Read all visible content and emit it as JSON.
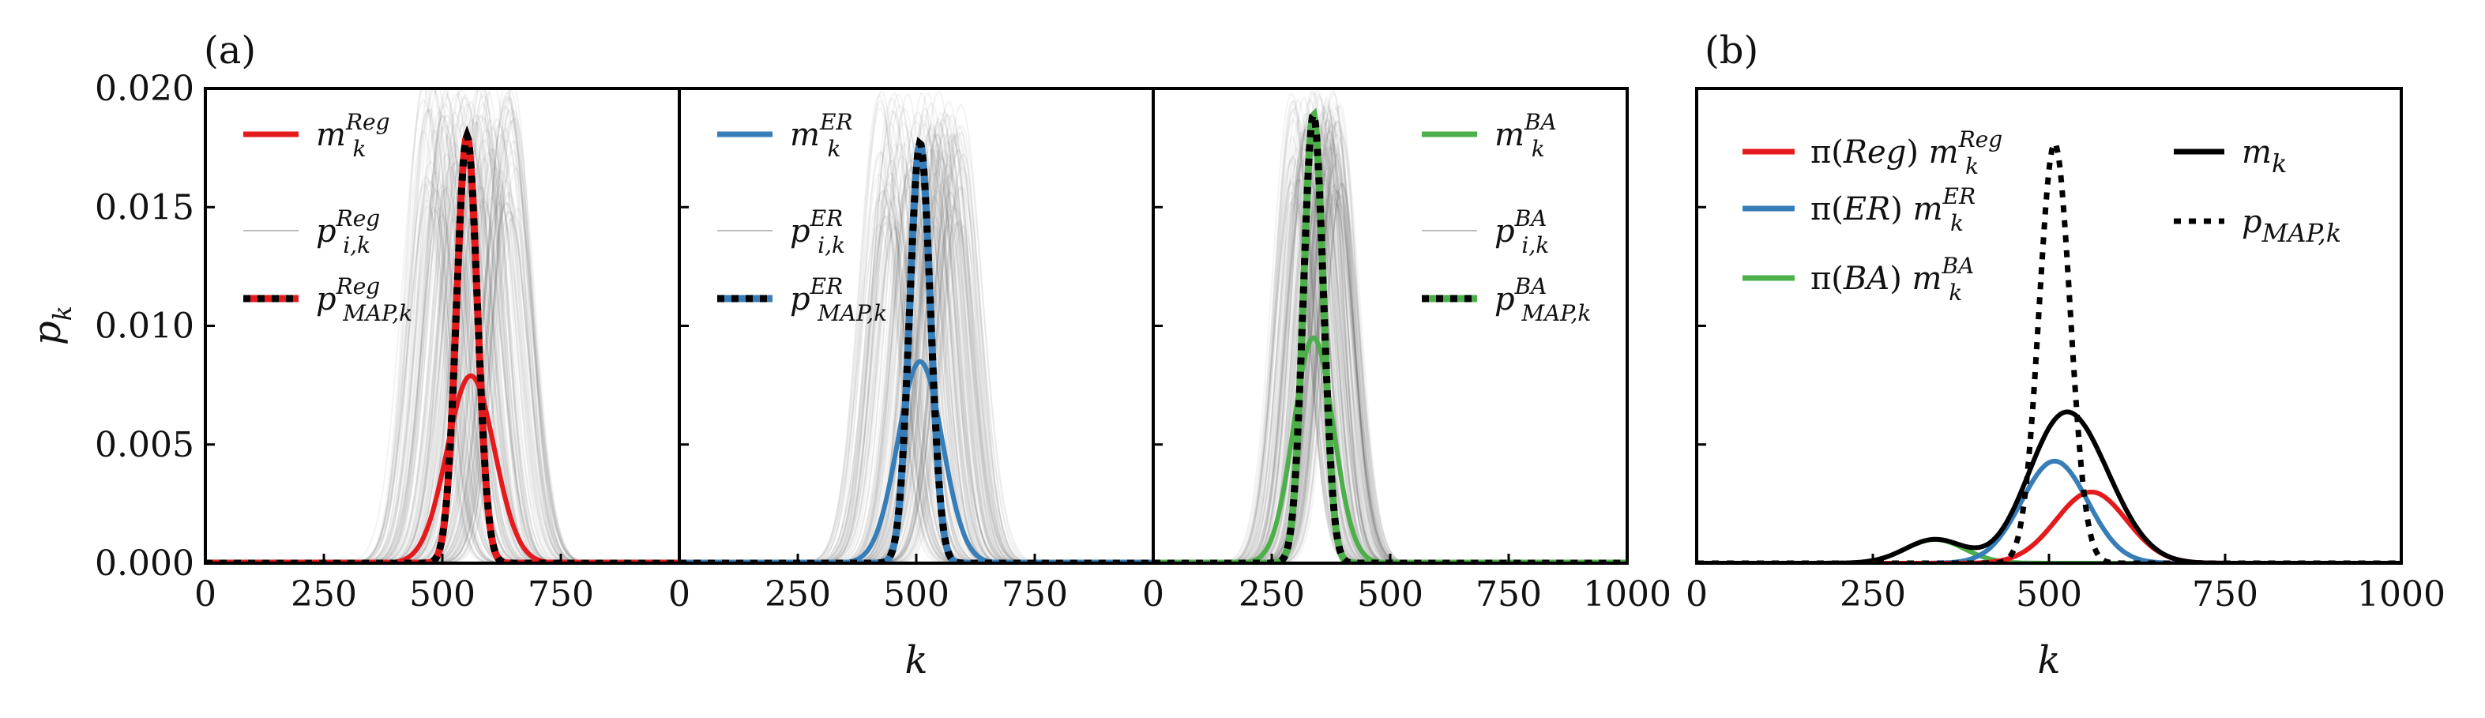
{
  "chart_data": [
    {
      "type": "line",
      "panel_label": "(a)",
      "xlabel": "k",
      "ylabel": "p_k",
      "ylim": [
        0,
        0.02
      ],
      "yticks": [
        "0.000",
        "0.005",
        "0.010",
        "0.015",
        "0.020"
      ],
      "legend": {
        "placement": "top-left"
      },
      "subplots": [
        {
          "xlim": [
            0,
            1000
          ],
          "xticks": [
            "0",
            "250",
            "500",
            "750"
          ],
          "color": "#e41a1c",
          "series": [
            {
              "name": "m_k^{Reg}",
              "label_main": "m",
              "label_sub": "k",
              "label_sup": "Reg",
              "style": "solid",
              "mu": 560,
              "sigma": 50,
              "peak": 0.0079
            },
            {
              "name": "p_{i,k}^{Reg}",
              "label_main": "p",
              "label_sub": "i,k",
              "label_sup": "Reg",
              "style": "thin-grey",
              "mu_range": [
                460,
                660
              ],
              "sigma": 40,
              "peak_range": [
                0.0145,
                0.0205
              ]
            },
            {
              "name": "p_{MAP,k}^{Reg}",
              "label_main": "p",
              "label_sub": "MAP,k",
              "label_sup": "Reg",
              "style": "dotted",
              "mu": 552,
              "sigma": 22,
              "peak": 0.018
            }
          ]
        },
        {
          "xlim": [
            0,
            1000
          ],
          "xticks": [
            "0",
            "250",
            "500",
            "750"
          ],
          "color": "#377eb8",
          "series": [
            {
              "name": "m_k^{ER}",
              "label_main": "m",
              "label_sub": "k",
              "label_sup": "ER",
              "style": "solid",
              "mu": 508,
              "sigma": 47,
              "peak": 0.0085
            },
            {
              "name": "p_{i,k}^{ER}",
              "label_main": "p",
              "label_sub": "i,k",
              "label_sup": "ER",
              "style": "thin-grey",
              "mu_range": [
                420,
                600
              ],
              "sigma": 40,
              "peak_range": [
                0.014,
                0.02
              ]
            },
            {
              "name": "p_{MAP,k}^{ER}",
              "label_main": "p",
              "label_sub": "MAP,k",
              "label_sup": "ER",
              "style": "dotted",
              "mu": 508,
              "sigma": 22,
              "peak": 0.0177
            }
          ]
        },
        {
          "xlim": [
            0,
            1000
          ],
          "xticks": [
            "0",
            "250",
            "500",
            "750",
            "1000"
          ],
          "color": "#4daf4a",
          "series": [
            {
              "name": "m_k^{BA}",
              "label_main": "m",
              "label_sub": "k",
              "label_sup": "BA",
              "style": "solid",
              "mu": 338,
              "sigma": 42,
              "peak": 0.0095
            },
            {
              "name": "p_{i,k}^{BA}",
              "label_main": "p",
              "label_sub": "i,k",
              "label_sup": "BA",
              "style": "thin-grey",
              "mu_range": [
                290,
                400
              ],
              "sigma": 36,
              "peak_range": [
                0.015,
                0.02
              ]
            },
            {
              "name": "p_{MAP,k}^{BA}",
              "label_main": "p",
              "label_sub": "MAP,k",
              "label_sup": "BA",
              "style": "dotted",
              "mu": 338,
              "sigma": 21,
              "peak": 0.0189
            }
          ]
        }
      ]
    },
    {
      "type": "line",
      "panel_label": "(b)",
      "xlabel": "k",
      "xlim": [
        0,
        1000
      ],
      "xticks": [
        "0",
        "250",
        "500",
        "750",
        "1000"
      ],
      "ylim": [
        0,
        0.02
      ],
      "legend": {
        "placement": "top"
      },
      "series": [
        {
          "name": "π(Reg) m_k^{Reg}",
          "label_pre": "π(",
          "label_pre_it": "Reg",
          "label_post": ") ",
          "label_main": "m",
          "label_sub": "k",
          "label_sup": "Reg",
          "color": "#e41a1c",
          "style": "solid",
          "mu": 560,
          "sigma": 50,
          "peak": 0.003
        },
        {
          "name": "π(ER) m_k^{ER}",
          "label_pre": "π(",
          "label_pre_it": "ER",
          "label_post": ") ",
          "label_main": "m",
          "label_sub": "k",
          "label_sup": "ER",
          "color": "#377eb8",
          "style": "solid",
          "mu": 508,
          "sigma": 47,
          "peak": 0.0043
        },
        {
          "name": "π(BA) m_k^{BA}",
          "label_pre": "π(",
          "label_pre_it": "BA",
          "label_post": ") ",
          "label_main": "m",
          "label_sub": "k",
          "label_sup": "BA",
          "color": "#4daf4a",
          "style": "solid",
          "mu": 338,
          "sigma": 42,
          "peak": 0.001
        },
        {
          "name": "m_k",
          "label_main": "m",
          "label_sub": "k",
          "color": "#000000",
          "style": "solid",
          "sum_of": [
            0,
            1,
            2
          ]
        },
        {
          "name": "p_{MAP,k}",
          "label_main": "p",
          "label_sub": "MAP,k",
          "color": "#000000",
          "style": "dotted",
          "mu": 508,
          "sigma": 22,
          "peak": 0.0177
        }
      ]
    }
  ]
}
